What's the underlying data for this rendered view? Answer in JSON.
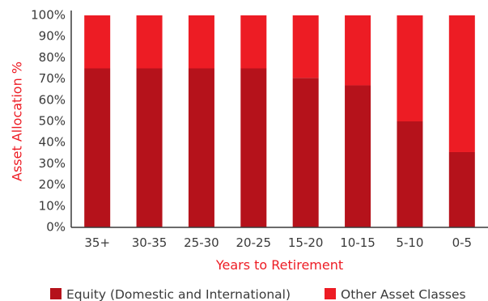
{
  "chart_data": {
    "type": "bar",
    "stacked": true,
    "categories": [
      "35+",
      "30-35",
      "25-30",
      "20-25",
      "15-20",
      "10-15",
      "5-10",
      "0-5"
    ],
    "series": [
      {
        "name": "Equity (Domestic and International)",
        "color": "#b5121b",
        "values": [
          75,
          75,
          75,
          75,
          70.5,
          67,
          50,
          35.5
        ]
      },
      {
        "name": "Other Asset Classes",
        "color": "#ed1c24",
        "values": [
          25,
          25,
          25,
          25,
          29.5,
          33,
          50,
          64.5
        ]
      }
    ],
    "ylabel": "Asset Allocation %",
    "xlabel": "Years to Retirement",
    "ylim": [
      0,
      100
    ],
    "yticks": [
      "0%",
      "10%",
      "20%",
      "30%",
      "40%",
      "50%",
      "60%",
      "70%",
      "80%",
      "90%",
      "100%"
    ],
    "axis_title_color": "#ed1c24",
    "axis_color": "#3a3a3a",
    "legend_position": "bottom",
    "grid": false
  }
}
